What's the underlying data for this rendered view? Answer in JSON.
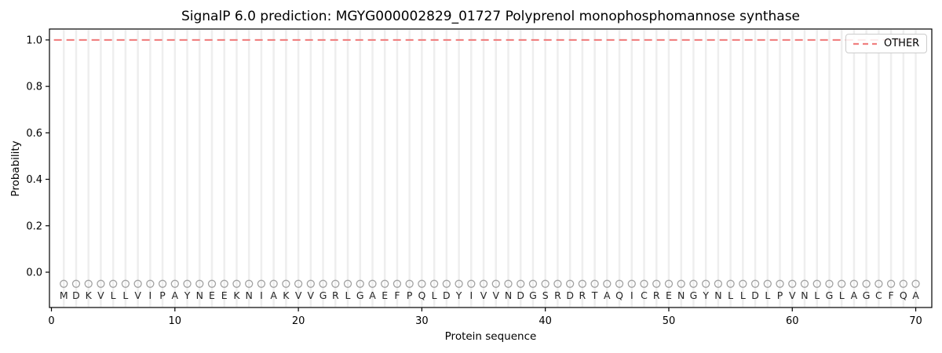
{
  "chart_data": {
    "type": "line",
    "title": "SignalP 6.0 prediction: MGYG000002829_01727 Polyprenol monophosphomannose synthase",
    "xlabel": "Protein sequence",
    "ylabel": "Probability",
    "xlim": [
      -0.16,
      71.3
    ],
    "ylim": [
      -0.152,
      1.047
    ],
    "x_ticks": [
      0,
      10,
      20,
      30,
      40,
      50,
      60,
      70
    ],
    "y_ticks": [
      0.0,
      0.2,
      0.4,
      0.6,
      0.8,
      1.0
    ],
    "grid": {
      "vertical_per_residue": true,
      "color": "#eeeeee"
    },
    "legend": {
      "position": "upper right",
      "entries": [
        {
          "label": "OTHER",
          "color": "#f08080",
          "linestyle": "dashed"
        }
      ]
    },
    "series": [
      {
        "name": "OTHER",
        "color": "#f08080",
        "linestyle": "dashed",
        "y_value": 1.0,
        "x_range": [
          0.2,
          70
        ]
      }
    ],
    "sequence": {
      "residues": "MDKVLLVIPAYNEEKNIAKVVGRLGAEFPQLDYIVVNDGSRDRTAQICRENGYNLLDLPVNLGLAGCFQA",
      "first_position": 1,
      "last_position": 70,
      "marker": "open-circle",
      "marker_color": "#a3a3a3",
      "marker_y": -0.05,
      "letter_y": -0.1
    }
  }
}
